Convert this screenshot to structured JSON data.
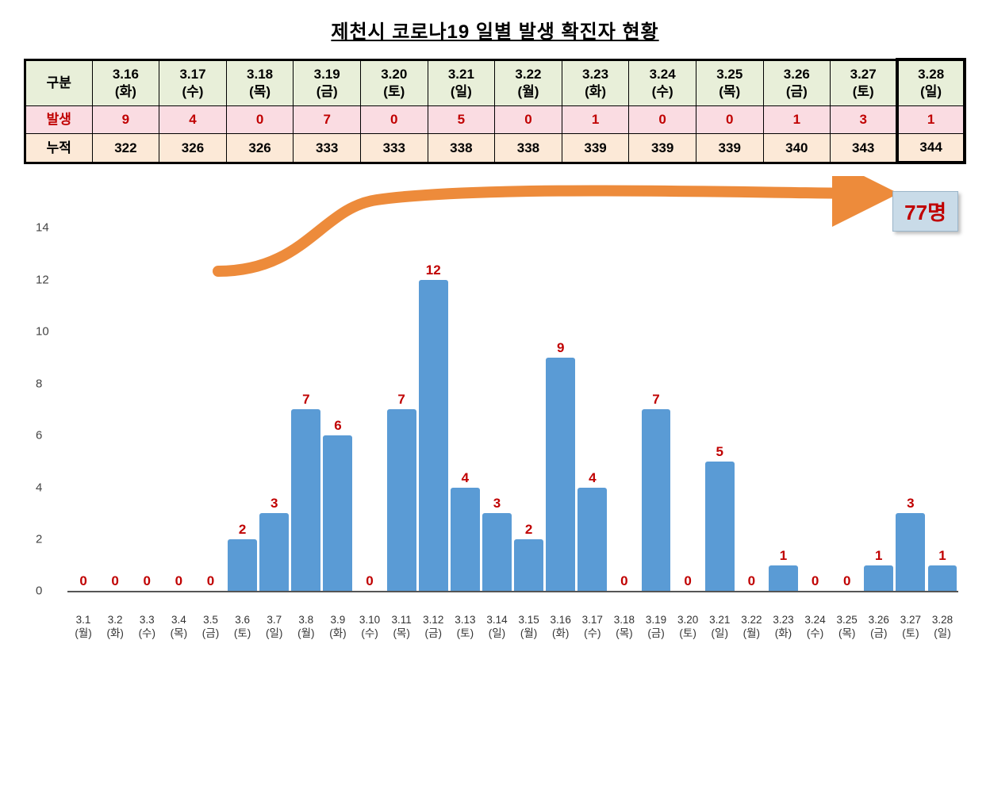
{
  "title": "제천시 코로나19 일별 발생 확진자 현황",
  "title_fontsize": 24,
  "table": {
    "header_label": "구분",
    "row_labels": {
      "occur": "발생",
      "cumul": "누적"
    },
    "dates": [
      "3.16",
      "3.17",
      "3.18",
      "3.19",
      "3.20",
      "3.21",
      "3.22",
      "3.23",
      "3.24",
      "3.25",
      "3.26",
      "3.27",
      "3.28"
    ],
    "days": [
      "(화)",
      "(수)",
      "(목)",
      "(금)",
      "(토)",
      "(일)",
      "(월)",
      "(화)",
      "(수)",
      "(목)",
      "(금)",
      "(토)",
      "(일)"
    ],
    "occur": [
      9,
      4,
      0,
      7,
      0,
      5,
      0,
      1,
      0,
      0,
      1,
      3,
      1
    ],
    "cumul": [
      322,
      326,
      326,
      333,
      333,
      338,
      338,
      339,
      339,
      339,
      340,
      343,
      344
    ],
    "highlight_last": true,
    "colors": {
      "header_bg": "#e8efd9",
      "occur_bg": "#fadce2",
      "occur_fg": "#c00000",
      "cumul_bg": "#fce9d7",
      "border": "#000000"
    }
  },
  "arrow": {
    "color": "#ed8b3b",
    "stroke_width": 14
  },
  "badge": {
    "text": "77명",
    "bg": "#c9dbe8",
    "fg": "#c00000",
    "fontsize": 26
  },
  "chart": {
    "type": "bar",
    "categories_date": [
      "3.1",
      "3.2",
      "3.3",
      "3.4",
      "3.5",
      "3.6",
      "3.7",
      "3.8",
      "3.9",
      "3.10",
      "3.11",
      "3.12",
      "3.13",
      "3.14",
      "3.15",
      "3.16",
      "3.17",
      "3.18",
      "3.19",
      "3.20",
      "3.21",
      "3.22",
      "3.23",
      "3.24",
      "3.25",
      "3.26",
      "3.27",
      "3.28"
    ],
    "categories_day": [
      "(월)",
      "(화)",
      "(수)",
      "(목)",
      "(금)",
      "(토)",
      "(일)",
      "(월)",
      "(화)",
      "(수)",
      "(목)",
      "(금)",
      "(토)",
      "(일)",
      "(월)",
      "(화)",
      "(수)",
      "(목)",
      "(금)",
      "(토)",
      "(일)",
      "(월)",
      "(화)",
      "(수)",
      "(목)",
      "(금)",
      "(토)",
      "(일)"
    ],
    "values": [
      0,
      0,
      0,
      0,
      0,
      2,
      3,
      7,
      6,
      0,
      7,
      12,
      4,
      3,
      2,
      9,
      4,
      0,
      7,
      0,
      5,
      0,
      1,
      0,
      0,
      1,
      3,
      1
    ],
    "bar_color": "#5a9bd5",
    "value_label_color": "#c00000",
    "value_fontsize": 17,
    "axis_color": "#555555",
    "ylim": [
      0,
      14
    ],
    "ytick_step": 2,
    "yticks": [
      0,
      2,
      4,
      6,
      8,
      10,
      12,
      14
    ],
    "background_color": "#ffffff",
    "xlabel_fontsize": 13.5,
    "bar_width_ratio": 0.92
  }
}
